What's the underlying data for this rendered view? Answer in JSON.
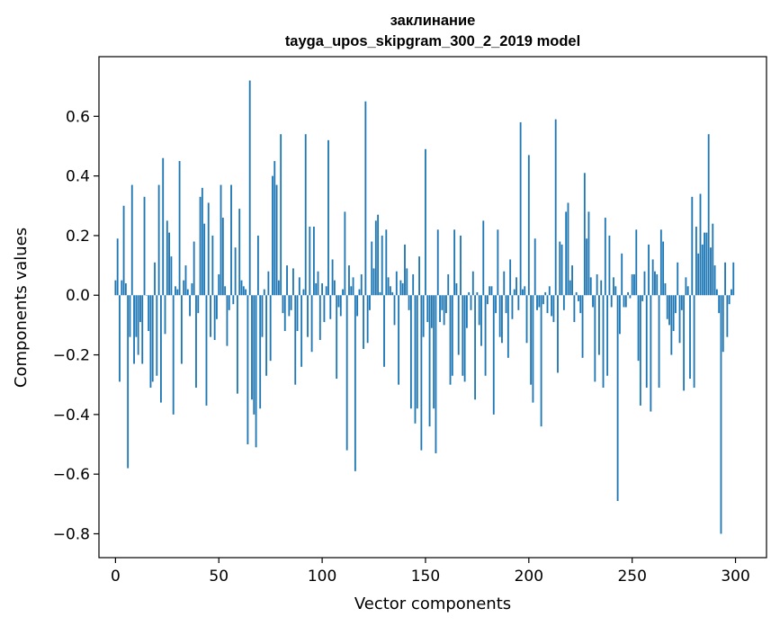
{
  "chart_data": {
    "type": "bar",
    "title": "заклинание",
    "subtitle": "tayga_upos_skipgram_300_2_2019 model",
    "xlabel": "Vector components",
    "ylabel": "Components values",
    "xlim": [
      -8,
      315
    ],
    "ylim": [
      -0.88,
      0.8
    ],
    "xticks": [
      0,
      50,
      100,
      150,
      200,
      250,
      300
    ],
    "xtick_labels": [
      "0",
      "50",
      "100",
      "150",
      "200",
      "250",
      "300"
    ],
    "yticks": [
      -0.8,
      -0.6,
      -0.4,
      -0.2,
      0.0,
      0.2,
      0.4,
      0.6
    ],
    "ytick_labels": [
      "−0.8",
      "−0.6",
      "−0.4",
      "−0.2",
      "0.0",
      "0.2",
      "0.4",
      "0.6"
    ],
    "grid": false,
    "color": "#1f77b4",
    "values": [
      0.05,
      0.19,
      -0.29,
      0.05,
      0.3,
      0.04,
      -0.58,
      -0.14,
      0.37,
      -0.23,
      -0.14,
      -0.2,
      -0.09,
      -0.23,
      0.33,
      0.0,
      -0.12,
      -0.31,
      -0.29,
      0.11,
      -0.27,
      0.37,
      -0.36,
      0.46,
      -0.13,
      0.25,
      0.21,
      0.13,
      -0.4,
      0.03,
      0.02,
      0.45,
      -0.23,
      0.05,
      0.1,
      0.02,
      -0.07,
      0.04,
      0.18,
      -0.31,
      -0.06,
      0.33,
      0.36,
      0.24,
      -0.37,
      0.31,
      -0.14,
      0.2,
      -0.15,
      -0.08,
      0.07,
      0.37,
      0.26,
      0.03,
      -0.17,
      -0.05,
      0.37,
      -0.03,
      0.16,
      -0.33,
      0.29,
      0.05,
      0.03,
      0.02,
      -0.5,
      0.72,
      -0.35,
      -0.4,
      -0.51,
      0.2,
      -0.38,
      -0.14,
      0.02,
      -0.27,
      0.08,
      -0.22,
      0.4,
      0.45,
      0.37,
      0.05,
      0.54,
      -0.06,
      -0.12,
      0.1,
      -0.07,
      -0.05,
      0.09,
      -0.3,
      -0.12,
      0.06,
      -0.24,
      0.02,
      0.54,
      -0.14,
      0.23,
      -0.19,
      0.23,
      0.04,
      0.08,
      -0.15,
      0.04,
      -0.09,
      0.03,
      0.52,
      -0.08,
      0.12,
      0.05,
      -0.28,
      -0.04,
      -0.07,
      0.02,
      0.28,
      -0.52,
      0.1,
      0.03,
      0.06,
      -0.59,
      -0.07,
      0.02,
      0.07,
      -0.18,
      0.65,
      -0.16,
      -0.05,
      0.18,
      0.09,
      0.25,
      0.27,
      0.01,
      0.2,
      -0.24,
      0.22,
      0.06,
      0.03,
      0.01,
      -0.1,
      0.08,
      -0.3,
      0.05,
      0.04,
      0.17,
      0.09,
      -0.05,
      -0.38,
      0.07,
      -0.43,
      -0.38,
      0.13,
      -0.52,
      -0.14,
      0.49,
      -0.09,
      -0.44,
      -0.11,
      -0.38,
      -0.53,
      0.22,
      -0.09,
      -0.05,
      -0.1,
      -0.06,
      0.07,
      -0.3,
      -0.27,
      0.22,
      0.04,
      -0.2,
      0.2,
      -0.27,
      -0.29,
      -0.11,
      0.01,
      -0.05,
      0.08,
      -0.35,
      0.01,
      -0.1,
      -0.17,
      0.25,
      -0.27,
      -0.03,
      0.03,
      0.03,
      -0.4,
      -0.06,
      0.22,
      -0.14,
      -0.16,
      0.08,
      -0.06,
      -0.21,
      0.12,
      -0.08,
      0.02,
      0.06,
      -0.05,
      0.58,
      0.02,
      0.03,
      -0.16,
      0.47,
      -0.3,
      -0.36,
      0.19,
      -0.05,
      -0.04,
      -0.44,
      -0.03,
      0.01,
      -0.06,
      0.03,
      -0.07,
      -0.09,
      0.59,
      -0.26,
      0.18,
      0.17,
      -0.05,
      0.28,
      0.31,
      0.05,
      0.1,
      -0.09,
      0.01,
      -0.02,
      -0.06,
      -0.21,
      0.41,
      0.19,
      0.28,
      0.06,
      -0.04,
      -0.29,
      0.07,
      -0.2,
      0.05,
      -0.31,
      0.26,
      -0.27,
      0.2,
      -0.04,
      0.06,
      0.03,
      -0.69,
      -0.13,
      0.14,
      -0.04,
      -0.04,
      0.01,
      -0.01,
      0.07,
      0.07,
      0.22,
      -0.22,
      -0.37,
      -0.02,
      0.08,
      -0.31,
      0.17,
      -0.39,
      0.12,
      0.08,
      0.07,
      -0.31,
      0.22,
      0.18,
      0.04,
      -0.08,
      -0.1,
      -0.2,
      -0.12,
      -0.06,
      0.11,
      -0.16,
      -0.05,
      -0.32,
      0.06,
      0.03,
      -0.28,
      0.33,
      -0.31,
      0.23,
      0.14,
      0.34,
      0.17,
      0.21,
      0.21,
      0.54,
      0.16,
      0.24,
      0.1,
      0.02,
      -0.06,
      -0.8,
      -0.19,
      0.11,
      -0.14,
      -0.03,
      0.02,
      0.11
    ]
  }
}
